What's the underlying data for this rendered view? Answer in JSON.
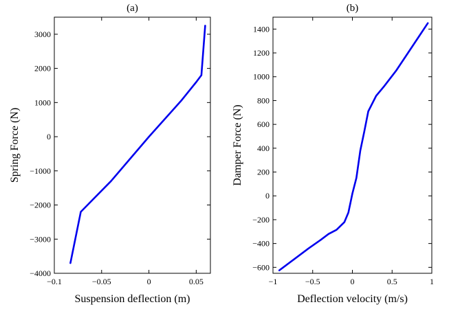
{
  "colors": {
    "series": "#0000ee",
    "axes": "#000000",
    "background": "#ffffff"
  },
  "chart_data": [
    {
      "type": "line",
      "title": "(a)",
      "xlabel": "Suspension deflection (m)",
      "ylabel": "Spring Force (N)",
      "xlim": [
        -0.1,
        0.065
      ],
      "ylim": [
        -4000,
        3500
      ],
      "xticks": [
        -0.1,
        -0.05,
        0,
        0.05
      ],
      "xtick_labels": [
        "−0.1",
        "−0.05",
        "0",
        "0.05"
      ],
      "yticks": [
        -4000,
        -3000,
        -2000,
        -1000,
        0,
        1000,
        2000,
        3000
      ],
      "ytick_labels": [
        "−4000",
        "−3000",
        "−2000",
        "−1000",
        "0",
        "1000",
        "2000",
        "3000"
      ],
      "series": [
        {
          "x": [
            -0.083,
            -0.072,
            -0.04,
            0.0,
            0.034,
            0.05,
            0.0555,
            0.0595
          ],
          "y": [
            -3700,
            -2200,
            -1300,
            0,
            1050,
            1600,
            1800,
            3250
          ]
        }
      ]
    },
    {
      "type": "line",
      "title": "(b)",
      "xlabel": "Deflection velocity (m/s)",
      "ylabel": "Damper Force (N)",
      "xlim": [
        -1,
        1
      ],
      "ylim": [
        -650,
        1500
      ],
      "xticks": [
        -1,
        -0.5,
        0,
        0.5,
        1
      ],
      "xtick_labels": [
        "−1",
        "−0.5",
        "0",
        "0.5",
        "1"
      ],
      "yticks": [
        -600,
        -400,
        -200,
        0,
        200,
        400,
        600,
        800,
        1000,
        1200,
        1400
      ],
      "ytick_labels": [
        "−600",
        "−400",
        "−200",
        "0",
        "200",
        "400",
        "600",
        "800",
        "1000",
        "1200",
        "1400"
      ],
      "series": [
        {
          "x": [
            -0.92,
            -0.75,
            -0.55,
            -0.4,
            -0.3,
            -0.2,
            -0.1,
            -0.05,
            0.0,
            0.05,
            0.1,
            0.15,
            0.2,
            0.3,
            0.4,
            0.55,
            0.7,
            0.85,
            0.95
          ],
          "y": [
            -625,
            -540,
            -440,
            -370,
            -320,
            -285,
            -220,
            -140,
            20,
            150,
            380,
            540,
            710,
            840,
            920,
            1050,
            1200,
            1350,
            1450
          ]
        }
      ]
    }
  ]
}
